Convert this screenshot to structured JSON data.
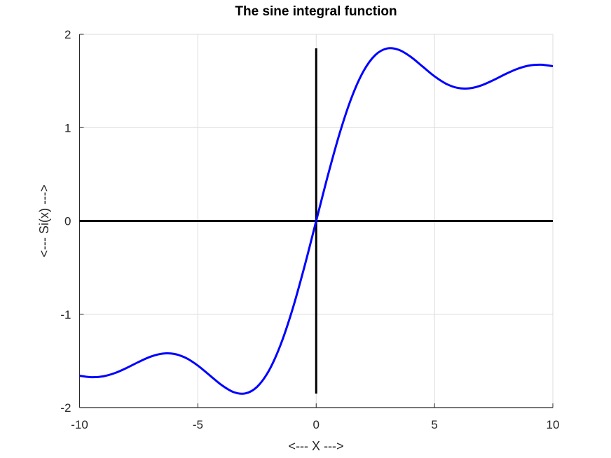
{
  "chart_data": {
    "type": "line",
    "title": "The sine integral function",
    "xlabel": "<--- X --->",
    "ylabel": "<--- Si(x) --->",
    "xlim": [
      -10,
      10
    ],
    "ylim": [
      -2,
      2
    ],
    "xticks": [
      "-10",
      "-5",
      "0",
      "5",
      "10"
    ],
    "yticks": [
      "-2",
      "-1",
      "0",
      "1",
      "2"
    ],
    "grid": true,
    "series": [
      {
        "color": "#0000ff",
        "x": [
          -10,
          -9.5,
          -9,
          -8.5,
          -8,
          -7.5,
          -7,
          -6.5,
          -6,
          -5.5,
          -5,
          -4.5,
          -4,
          -3.5,
          -3,
          -2.5,
          -2,
          -1.5,
          -1,
          -0.5,
          0,
          0.5,
          1,
          1.5,
          2,
          2.5,
          3,
          3.5,
          4,
          4.5,
          5,
          5.5,
          6,
          6.5,
          7,
          7.5,
          8,
          8.5,
          9,
          9.5,
          10
        ],
        "y": [
          -1.6583,
          -1.6745,
          -1.665,
          -1.6296,
          -1.5742,
          -1.5107,
          -1.4546,
          -1.4218,
          -1.4247,
          -1.4687,
          -1.5499,
          -1.6541,
          -1.7582,
          -1.8331,
          -1.8487,
          -1.7785,
          -1.6054,
          -1.3247,
          -0.9461,
          -0.4931,
          0,
          0.4931,
          0.9461,
          1.3247,
          1.6054,
          1.7785,
          1.8487,
          1.8331,
          1.7582,
          1.6541,
          1.5499,
          1.4687,
          1.4247,
          1.4218,
          1.4546,
          1.5107,
          1.5742,
          1.6296,
          1.665,
          1.6745,
          1.6583
        ]
      }
    ],
    "reference_lines": [
      {
        "name": "x-axis-line",
        "color": "#000000",
        "x": [
          -10,
          10
        ],
        "y": [
          0,
          0
        ]
      },
      {
        "name": "y-axis-line",
        "color": "#000000",
        "x": [
          0,
          0
        ],
        "y": [
          -1.85,
          1.85
        ]
      }
    ]
  }
}
